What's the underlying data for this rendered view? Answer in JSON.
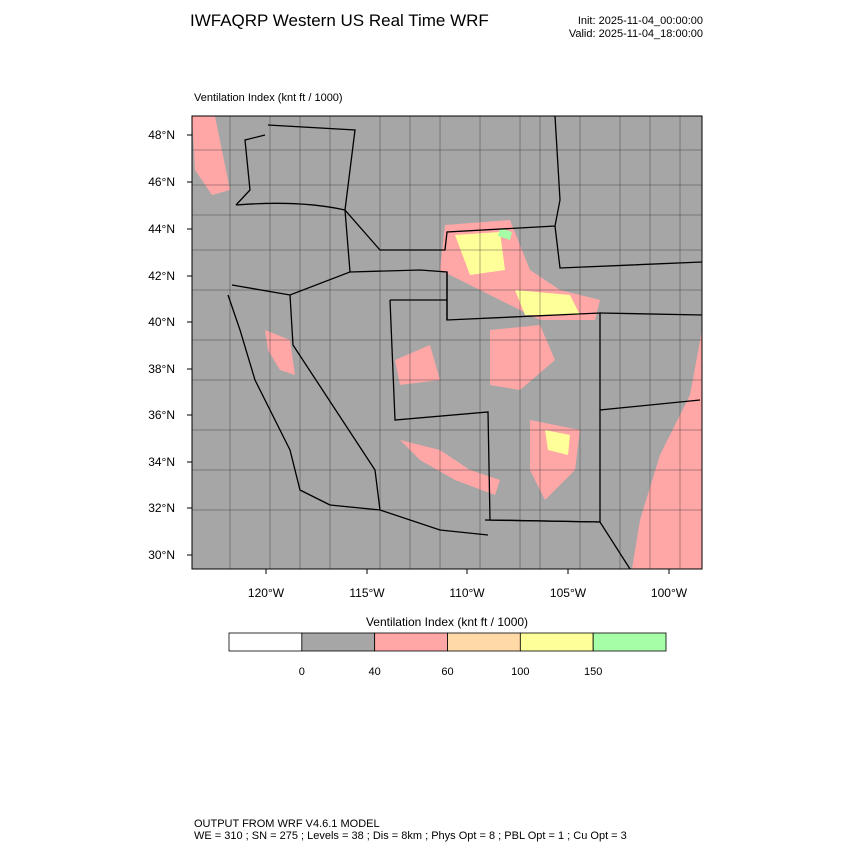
{
  "header": {
    "title": "IWFAQRP Western US Real Time WRF",
    "init": "Init: 2025-11-04_00:00:00",
    "valid": "Valid: 2025-11-04_18:00:00"
  },
  "map": {
    "label": "Ventilation Index   (knt ft / 1000)",
    "lat_labels": [
      "48°N",
      "46°N",
      "44°N",
      "42°N",
      "40°N",
      "38°N",
      "36°N",
      "34°N",
      "32°N",
      "30°N"
    ],
    "lon_labels": [
      "120°W",
      "115°W",
      "110°W",
      "105°W",
      "100°W"
    ]
  },
  "colorbar": {
    "title": "Ventilation Index  (knt ft / 1000)",
    "levels": [
      0,
      40,
      60,
      100,
      150
    ],
    "colors": [
      "#ffffff",
      "#a6a6a6",
      "#ffa6a6",
      "#ffd9a6",
      "#ffff99",
      "#a6ffa6"
    ]
  },
  "footer": {
    "line1": "OUTPUT FROM WRF V4.6.1 MODEL",
    "line2": "WE = 310 ; SN = 275 ; Levels = 38 ; Dis = 8km ; Phys Opt = 8 ; PBL Opt = 1 ; Cu Opt = 3"
  }
}
